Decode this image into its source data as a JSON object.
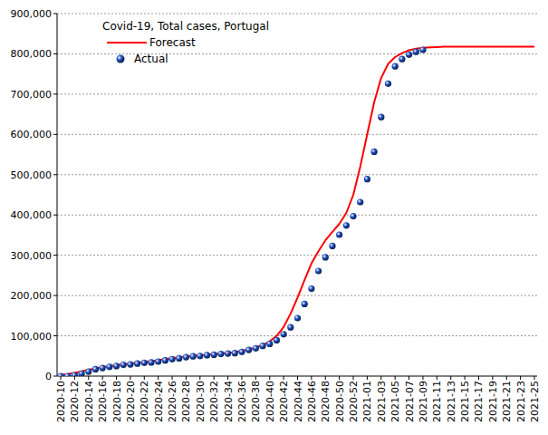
{
  "chart_data": {
    "type": "line",
    "title": "Covid-19, Total cases, Portugal",
    "categories": [
      "2020-10",
      null,
      "2020-12",
      null,
      "2020-14",
      null,
      "2020-16",
      null,
      "2020-18",
      null,
      "2020-20",
      null,
      "2020-22",
      null,
      "2020-24",
      null,
      "2020-26",
      null,
      "2020-28",
      null,
      "2020-30",
      null,
      "2020-32",
      null,
      "2020-34",
      null,
      "2020-36",
      null,
      "2020-38",
      null,
      "2020-40",
      null,
      "2020-42",
      null,
      "2020-44",
      null,
      "2020-46",
      null,
      "2020-48",
      null,
      "2020-50",
      null,
      "2020-52",
      null,
      "2021-01",
      null,
      "2021-03",
      null,
      "2021-05",
      null,
      "2021-07",
      null,
      "2021-09",
      null,
      "2021-11",
      null,
      "2021-13",
      null,
      "2021-15",
      null,
      "2021-17",
      null,
      "2021-19",
      null,
      "2021-21",
      null,
      "2021-23",
      null,
      "2021-25"
    ],
    "series": [
      {
        "name": "Forecast",
        "color": "#ff0000",
        "type": "line",
        "marker": "none",
        "line_style": "solid",
        "values": [
          3000,
          5000,
          8000,
          12000,
          16000,
          19000,
          22000,
          25000,
          27000,
          29000,
          31000,
          33000,
          35000,
          37000,
          39500,
          42000,
          44500,
          46500,
          48500,
          50000,
          51500,
          53000,
          54500,
          56000,
          57500,
          59500,
          62500,
          66500,
          71000,
          77000,
          86000,
          100000,
          122000,
          155000,
          195000,
          238000,
          280000,
          310000,
          337000,
          358000,
          378000,
          405000,
          450000,
          520000,
          600000,
          680000,
          740000,
          775000,
          792000,
          802000,
          809000,
          813000,
          815000,
          816000,
          817000,
          818000,
          818000,
          818000,
          818000,
          818000,
          818000,
          818000,
          818000,
          818000,
          818000,
          818000,
          818000,
          818000,
          818000
        ]
      },
      {
        "name": "Actual",
        "color": "#1f4fbf",
        "type": "scatter",
        "marker": "circle",
        "values": [
          0,
          0,
          2000,
          6000,
          11000,
          17000,
          20000,
          23000,
          25000,
          28000,
          29000,
          31000,
          33000,
          34000,
          36000,
          39000,
          42000,
          44000,
          47000,
          49000,
          50000,
          52000,
          53000,
          55000,
          56000,
          57000,
          60000,
          65000,
          69000,
          75000,
          80000,
          89000,
          104000,
          121000,
          144000,
          179000,
          217000,
          261000,
          295000,
          323000,
          351000,
          374000,
          397000,
          432000,
          489000,
          557000,
          643000,
          726000,
          769000,
          787000,
          798000,
          805000,
          810000,
          null,
          null,
          null,
          null,
          null,
          null,
          null,
          null,
          null,
          null,
          null,
          null,
          null,
          null,
          null,
          null
        ]
      }
    ],
    "ylim": [
      0,
      900000
    ],
    "yticks": [
      0,
      {
        "value": 100000,
        "label": "100,000"
      },
      {
        "value": 200000,
        "label": "200,000"
      },
      {
        "value": 300000,
        "label": "300,000"
      },
      {
        "value": 400000,
        "label": "400,000"
      },
      {
        "value": 500000,
        "label": "500,000"
      },
      {
        "value": 600000,
        "label": "600,000"
      },
      {
        "value": 700000,
        "label": "700,000"
      },
      {
        "value": 800000,
        "label": "800,000"
      },
      {
        "value": 900000,
        "label": "900,000"
      }
    ],
    "grid": true,
    "legend": "upper left"
  }
}
